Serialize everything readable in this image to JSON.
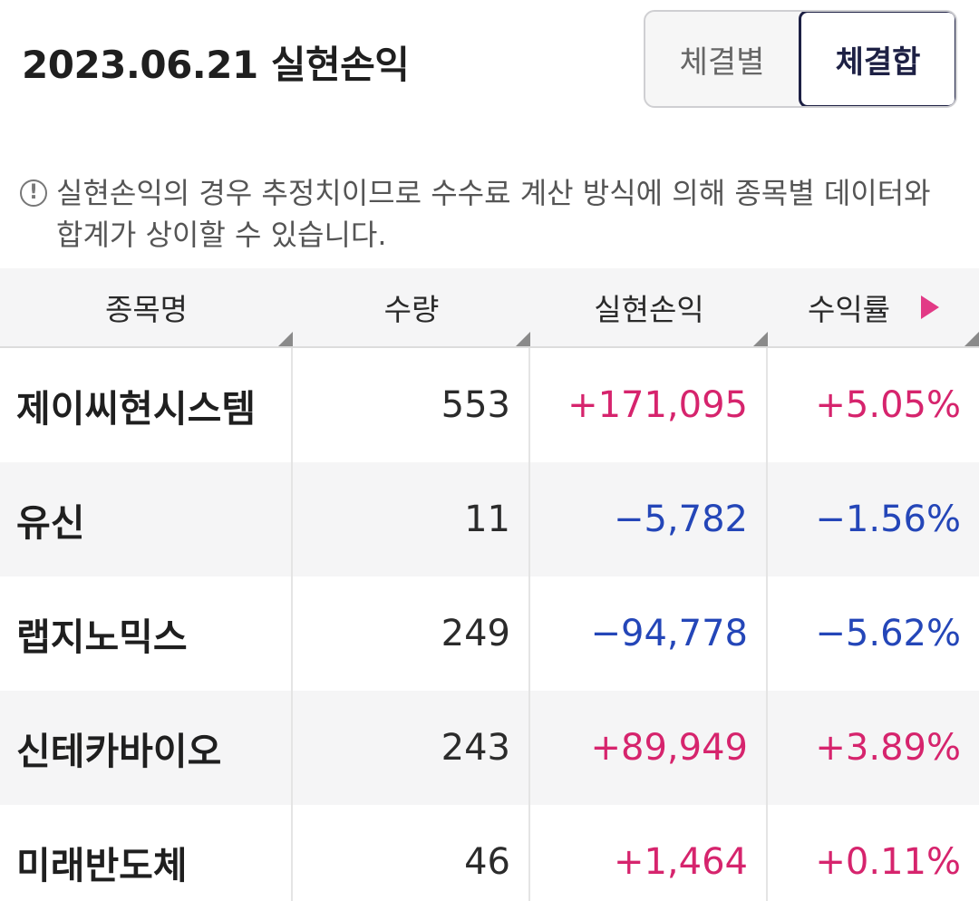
{
  "header": {
    "title": "2023.06.21 실현손익",
    "toggle": [
      {
        "label": "체결별",
        "active": false
      },
      {
        "label": "체결합",
        "active": true
      }
    ]
  },
  "notice": {
    "icon": "info-circle-icon",
    "text": "실현손익의 경우 추정치이므로 수수료 계산 방식에 의해 종목별 데이터와 합계가 상이할 수 있습니다."
  },
  "table": {
    "columns": [
      "종목명",
      "수량",
      "실현손익",
      "수익률"
    ],
    "rows": [
      {
        "name": "제이씨현시스템",
        "qty": "553",
        "pnl": "+171,095",
        "rate": "+5.05%",
        "sign": "pos"
      },
      {
        "name": "유신",
        "qty": "11",
        "pnl": "−5,782",
        "rate": "−1.56%",
        "sign": "neg"
      },
      {
        "name": "랩지노믹스",
        "qty": "249",
        "pnl": "−94,778",
        "rate": "−5.62%",
        "sign": "neg"
      },
      {
        "name": "신테카바이오",
        "qty": "243",
        "pnl": "+89,949",
        "rate": "+3.89%",
        "sign": "pos"
      },
      {
        "name": "미래반도체",
        "qty": "46",
        "pnl": "+1,464",
        "rate": "+0.11%",
        "sign": "pos"
      }
    ]
  },
  "colors": {
    "positive": "#d6246d",
    "negative": "#2446b8",
    "accent": "#1d2044",
    "scroll_arrow": "#e23a86"
  }
}
